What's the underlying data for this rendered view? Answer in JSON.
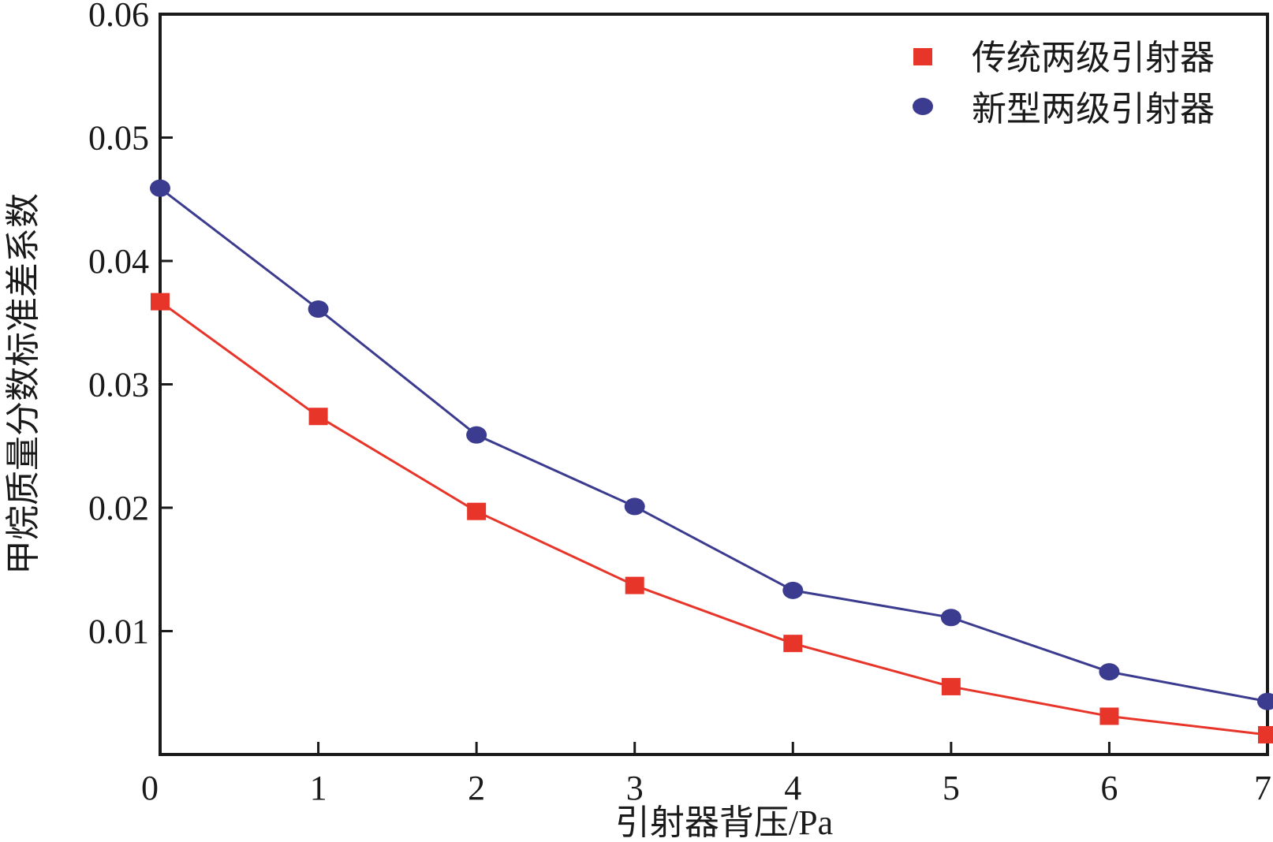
{
  "colors": {
    "traditional": "#e8352a",
    "novel": "#3b3b8f",
    "axis": "#1a1a1a"
  },
  "chart_data": {
    "type": "line",
    "title": "",
    "xlabel": "引射器背压/Pa",
    "ylabel": "甲烷质量分数标准差系数",
    "xlim": [
      0,
      7
    ],
    "ylim": [
      0,
      0.06
    ],
    "x_ticks": [
      "0",
      "1",
      "2",
      "3",
      "4",
      "5",
      "6",
      "7"
    ],
    "y_ticks": [
      "0.01",
      "0.02",
      "0.03",
      "0.04",
      "0.05",
      "0.06"
    ],
    "y_tick_values": [
      0.01,
      0.02,
      0.03,
      0.04,
      0.05,
      0.06
    ],
    "x": [
      0,
      1,
      2,
      3,
      4,
      5,
      6,
      7
    ],
    "legend_position": "top-right",
    "grid": false,
    "series": [
      {
        "name": "传统两级引射器",
        "marker": "square",
        "color": "#e8352a",
        "values": [
          0.0367,
          0.0274,
          0.0197,
          0.0137,
          0.009,
          0.0055,
          0.0031,
          0.0016
        ]
      },
      {
        "name": "新型两级引射器",
        "marker": "circle",
        "color": "#3b3b8f",
        "values": [
          0.0459,
          0.0361,
          0.0259,
          0.0201,
          0.0133,
          0.0111,
          0.0067,
          0.0043
        ]
      }
    ]
  }
}
